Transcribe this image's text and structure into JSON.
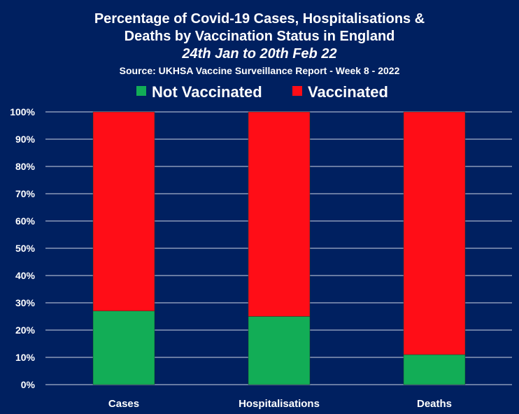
{
  "chart_data": {
    "type": "bar",
    "stacked": true,
    "percent": true,
    "title_lines": [
      "Percentage of Covid-19 Cases, Hospitalisations &",
      "Deaths by Vaccination Status in England"
    ],
    "subtitle": "24th Jan to 20th Feb 22",
    "source": "Source: UKHSA Vaccine Surveillance Report - Week 8 - 2022",
    "categories": [
      "Cases",
      "Hospitalisations",
      "Deaths"
    ],
    "series": [
      {
        "name": "Not Vaccinated",
        "color": "#12AD56",
        "values": [
          27,
          25,
          11
        ]
      },
      {
        "name": "Vaccinated",
        "color": "#FF0D17",
        "values": [
          73,
          75,
          89
        ]
      }
    ],
    "ylim": [
      0,
      100
    ],
    "yticks": [
      "0%",
      "10%",
      "20%",
      "30%",
      "40%",
      "50%",
      "60%",
      "70%",
      "80%",
      "90%",
      "100%"
    ],
    "grid": true,
    "legend_position": "top-center",
    "xlabel": "",
    "ylabel": "",
    "background": "#002060"
  }
}
